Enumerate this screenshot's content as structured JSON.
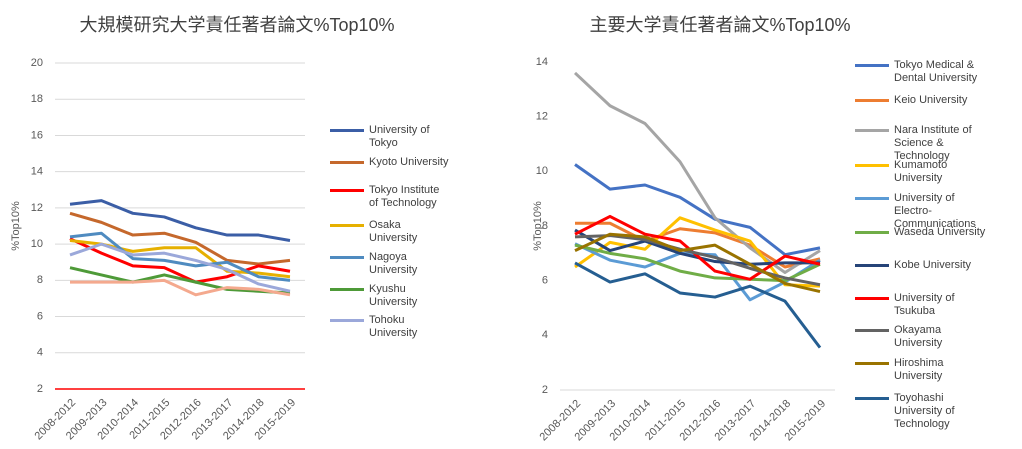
{
  "chart_data": [
    {
      "type": "line",
      "title": "大規模研究大学責任著者論文%Top10%",
      "ylabel": "%Top10%",
      "categories": [
        "2008-2012",
        "2009-2013",
        "2010-2014",
        "2011-2015",
        "2012-2016",
        "2013-2017",
        "2014-2018",
        "2015-2019"
      ],
      "ylim": [
        2,
        20
      ],
      "yticks": [
        2,
        4,
        6,
        8,
        10,
        12,
        14,
        16,
        18,
        20
      ],
      "grid": true,
      "axis_line_color": "#ff0000",
      "series": [
        {
          "name": "University of Tokyo",
          "color": "#3b5ea6",
          "values": [
            12.2,
            12.4,
            11.7,
            11.5,
            10.9,
            10.5,
            10.5,
            10.2
          ]
        },
        {
          "name": "Kyoto University",
          "color": "#c5682c",
          "values": [
            11.7,
            11.2,
            10.5,
            10.6,
            10.1,
            9.1,
            8.9,
            9.1
          ]
        },
        {
          "name": "Tokyo Institute of Technology",
          "color": "#ff0000",
          "values": [
            10.3,
            9.5,
            8.8,
            8.7,
            7.9,
            8.2,
            8.8,
            8.5
          ]
        },
        {
          "name": "Osaka University",
          "color": "#e6b000",
          "values": [
            10.2,
            10.0,
            9.6,
            9.8,
            9.8,
            8.5,
            8.4,
            8.2
          ]
        },
        {
          "name": "Nagoya University",
          "color": "#4f8bc0",
          "values": [
            10.4,
            10.6,
            9.2,
            9.1,
            8.8,
            9.0,
            8.2,
            8.0
          ]
        },
        {
          "name": "Kyushu University",
          "color": "#4e9a38",
          "values": [
            8.7,
            8.3,
            7.9,
            8.3,
            7.9,
            7.5,
            7.4,
            7.3
          ]
        },
        {
          "name": "Tohoku University",
          "color": "#9ba8da",
          "values": [
            9.4,
            10.0,
            9.4,
            9.5,
            9.1,
            8.6,
            7.8,
            7.4
          ]
        },
        {
          "color": "#f4a98e",
          "values": [
            7.9,
            7.9,
            7.9,
            8.0,
            7.2,
            7.6,
            7.5,
            7.2
          ]
        }
      ]
    },
    {
      "type": "line",
      "title": "主要大学責任著者論文%Top10%",
      "ylabel": "%Top10%",
      "categories": [
        "2008-2012",
        "2009-2013",
        "2010-2014",
        "2011-2015",
        "2012-2016",
        "2013-2017",
        "2014-2018",
        "2015-2019"
      ],
      "ylim": [
        2,
        14
      ],
      "yticks": [
        2,
        4,
        6,
        8,
        10,
        12,
        14
      ],
      "grid": false,
      "series": [
        {
          "name": "Tokyo Medical & Dental University",
          "color": "#4472c4",
          "values": [
            10.25,
            9.35,
            9.5,
            9.05,
            8.25,
            7.95,
            6.95,
            7.2
          ]
        },
        {
          "name": "Keio University",
          "color": "#ed7d31",
          "values": [
            8.1,
            8.1,
            7.45,
            7.9,
            7.75,
            7.3,
            6.5,
            6.8
          ]
        },
        {
          "name": "Nara Institute of Science & Technology",
          "color": "#a5a5a5",
          "values": [
            13.6,
            12.4,
            11.75,
            10.35,
            8.3,
            7.2,
            6.3,
            7.1
          ]
        },
        {
          "name": "Kumamoto University",
          "color": "#ffc000",
          "values": [
            6.5,
            7.4,
            7.15,
            8.3,
            7.85,
            7.45,
            5.85,
            5.8
          ]
        },
        {
          "name": "University of Electro-Communications",
          "color": "#5b9bd5",
          "values": [
            7.35,
            6.75,
            6.5,
            7.0,
            6.95,
            5.3,
            5.95,
            6.75
          ]
        },
        {
          "name": "Waseda University",
          "color": "#70ad47",
          "values": [
            7.3,
            7.0,
            6.8,
            6.35,
            6.1,
            6.05,
            6.0,
            6.6
          ]
        },
        {
          "name": "Kobe University",
          "color": "#264478",
          "values": [
            7.85,
            7.1,
            7.45,
            7.0,
            6.7,
            6.6,
            6.65,
            6.65
          ]
        },
        {
          "name": "University of Tsukuba",
          "color": "#ff0000",
          "values": [
            7.7,
            8.35,
            7.7,
            7.45,
            6.35,
            6.05,
            6.9,
            6.6
          ]
        },
        {
          "name": "Okayama University",
          "color": "#636363",
          "values": [
            7.6,
            7.65,
            7.5,
            7.15,
            6.85,
            6.45,
            6.1,
            5.85
          ]
        },
        {
          "name": "Hiroshima University",
          "color": "#997300",
          "values": [
            7.1,
            7.7,
            7.6,
            7.1,
            7.3,
            6.6,
            5.9,
            5.6
          ]
        },
        {
          "name": "Toyohashi University of Technology",
          "color": "#255e91",
          "values": [
            6.65,
            5.95,
            6.25,
            5.55,
            5.4,
            5.8,
            5.25,
            3.55
          ]
        }
      ]
    }
  ]
}
